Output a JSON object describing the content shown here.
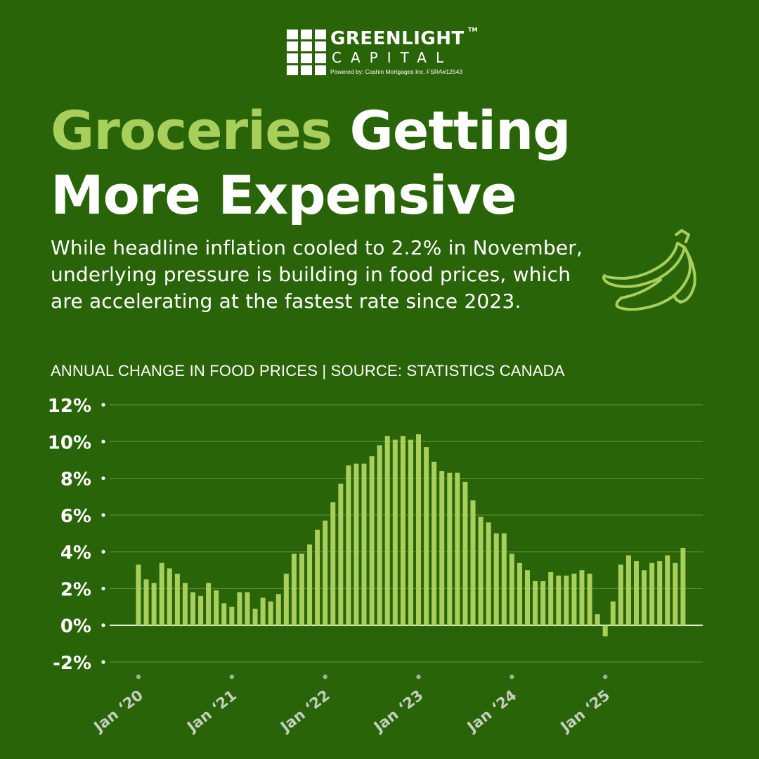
{
  "logo": {
    "name": "GREENLIGHT",
    "tm": "TM",
    "sub": "CAPITAL",
    "powered": "Powered by:  Cashin Mortgages Inc.  FSRA#12543"
  },
  "headline": {
    "accent": "Groceries",
    "rest_line1": " Getting",
    "line2": "More Expensive"
  },
  "subtitle": "While headline inflation cooled to 2.2% in November, underlying pressure is building in food prices, which are accelerating at the fastest rate since 2023.",
  "colors": {
    "background": "#2a6408",
    "accent": "#a8cf5c",
    "bar": "#a8cf5c",
    "grid": "#5b8a3a",
    "text": "#ffffff"
  },
  "icon": "banana-icon",
  "chart_data": {
    "type": "bar",
    "title": "ANNUAL CHANGE IN FOOD PRICES | SOURCE: STATISTICS CANADA",
    "ylim": [
      -2,
      12
    ],
    "y_ticks": [
      12,
      10,
      8,
      6,
      4,
      2,
      0,
      -2
    ],
    "y_tick_labels": [
      "12%",
      "10%",
      "8%",
      "6%",
      "4%",
      "2%",
      "0%",
      "-2%"
    ],
    "x_ticks": [
      {
        "index": 0,
        "label": "Jan ‘20"
      },
      {
        "index": 12,
        "label": "Jan ‘21"
      },
      {
        "index": 24,
        "label": "Jan ‘22"
      },
      {
        "index": 36,
        "label": "Jan ‘23"
      },
      {
        "index": 48,
        "label": "Jan ‘24"
      },
      {
        "index": 60,
        "label": "Jan ‘25"
      }
    ],
    "grid": true,
    "values": [
      3.3,
      2.5,
      2.3,
      3.4,
      3.1,
      2.8,
      2.3,
      1.8,
      1.6,
      2.3,
      1.9,
      1.2,
      1.0,
      1.8,
      1.8,
      0.9,
      1.5,
      1.3,
      1.7,
      2.8,
      3.9,
      3.9,
      4.4,
      5.2,
      5.7,
      6.7,
      7.7,
      8.7,
      8.8,
      8.8,
      9.2,
      9.8,
      10.3,
      10.1,
      10.3,
      10.1,
      10.4,
      9.7,
      8.9,
      8.4,
      8.3,
      8.3,
      7.8,
      6.8,
      5.9,
      5.6,
      5.0,
      5.0,
      3.9,
      3.4,
      3.0,
      2.4,
      2.4,
      2.9,
      2.7,
      2.7,
      2.8,
      3.0,
      2.8,
      0.6,
      -0.6,
      1.3,
      3.3,
      3.8,
      3.5,
      3.0,
      3.4,
      3.5,
      3.8,
      3.4,
      4.2
    ]
  }
}
